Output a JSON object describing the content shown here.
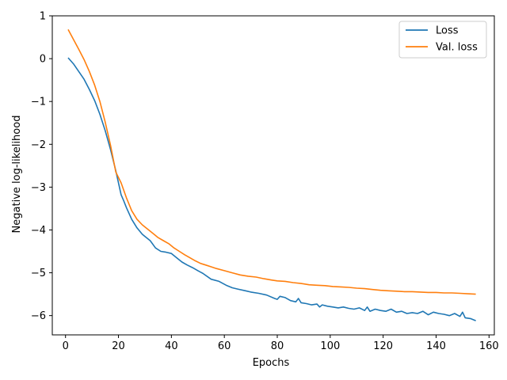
{
  "chart_data": {
    "type": "line",
    "xlabel": "Epochs",
    "ylabel": "Negative log-likelihood",
    "xlim": [
      -5,
      162
    ],
    "ylim": [
      -6.45,
      1.0
    ],
    "xticks": [
      0,
      20,
      40,
      60,
      80,
      100,
      120,
      140,
      160
    ],
    "yticks": [
      1,
      0,
      -1,
      -2,
      -3,
      -4,
      -5,
      -6
    ],
    "grid": false,
    "legend_position": "top-right",
    "series": [
      {
        "name": "Loss",
        "color": "#1f77b4",
        "x": [
          1,
          3,
          5,
          7,
          9,
          11,
          13,
          15,
          17,
          19,
          21,
          22,
          23,
          25,
          27,
          29,
          30,
          32,
          34,
          36,
          38,
          40,
          42,
          44,
          46,
          48,
          50,
          52,
          55,
          58,
          61,
          63,
          65,
          68,
          70,
          73,
          76,
          79,
          80,
          81,
          83,
          85,
          87,
          88,
          89,
          91,
          93,
          95,
          96,
          97,
          99,
          101,
          103,
          105,
          107,
          109,
          111,
          113,
          114,
          115,
          117,
          119,
          121,
          123,
          125,
          127,
          129,
          131,
          133,
          135,
          137,
          139,
          141,
          143,
          145,
          147,
          149,
          150,
          151,
          153,
          155
        ],
        "values": [
          0.02,
          -0.12,
          -0.3,
          -0.48,
          -0.72,
          -0.98,
          -1.3,
          -1.68,
          -2.12,
          -2.62,
          -3.18,
          -3.32,
          -3.48,
          -3.75,
          -3.95,
          -4.1,
          -4.15,
          -4.25,
          -4.42,
          -4.5,
          -4.52,
          -4.55,
          -4.65,
          -4.75,
          -4.82,
          -4.88,
          -4.95,
          -5.02,
          -5.15,
          -5.2,
          -5.3,
          -5.35,
          -5.38,
          -5.42,
          -5.45,
          -5.48,
          -5.52,
          -5.6,
          -5.62,
          -5.55,
          -5.58,
          -5.65,
          -5.68,
          -5.6,
          -5.7,
          -5.72,
          -5.75,
          -5.73,
          -5.8,
          -5.75,
          -5.78,
          -5.8,
          -5.82,
          -5.8,
          -5.83,
          -5.85,
          -5.82,
          -5.88,
          -5.8,
          -5.9,
          -5.85,
          -5.88,
          -5.9,
          -5.85,
          -5.92,
          -5.9,
          -5.95,
          -5.93,
          -5.95,
          -5.9,
          -5.98,
          -5.92,
          -5.95,
          -5.97,
          -6.0,
          -5.95,
          -6.02,
          -5.92,
          -6.05,
          -6.07,
          -6.12
        ]
      },
      {
        "name": "Val. loss",
        "color": "#ff7f0e",
        "x": [
          1,
          3,
          5,
          7,
          9,
          11,
          13,
          15,
          17,
          19,
          21,
          23,
          25,
          27,
          29,
          31,
          33,
          35,
          37,
          39,
          41,
          43,
          45,
          47,
          49,
          51,
          53,
          55,
          57,
          60,
          63,
          66,
          69,
          72,
          75,
          78,
          80,
          83,
          86,
          89,
          92,
          95,
          98,
          101,
          104,
          107,
          110,
          113,
          116,
          119,
          122,
          125,
          128,
          131,
          134,
          137,
          140,
          143,
          146,
          149,
          152,
          155
        ],
        "values": [
          0.68,
          0.45,
          0.22,
          -0.02,
          -0.3,
          -0.62,
          -1.0,
          -1.48,
          -2.02,
          -2.65,
          -2.9,
          -3.25,
          -3.55,
          -3.75,
          -3.88,
          -3.98,
          -4.08,
          -4.18,
          -4.25,
          -4.32,
          -4.42,
          -4.5,
          -4.58,
          -4.65,
          -4.72,
          -4.78,
          -4.82,
          -4.86,
          -4.9,
          -4.95,
          -5.0,
          -5.05,
          -5.08,
          -5.1,
          -5.14,
          -5.17,
          -5.19,
          -5.2,
          -5.23,
          -5.25,
          -5.28,
          -5.29,
          -5.3,
          -5.32,
          -5.33,
          -5.34,
          -5.36,
          -5.37,
          -5.39,
          -5.41,
          -5.42,
          -5.43,
          -5.44,
          -5.44,
          -5.45,
          -5.46,
          -5.46,
          -5.47,
          -5.47,
          -5.48,
          -5.49,
          -5.5
        ]
      }
    ]
  }
}
